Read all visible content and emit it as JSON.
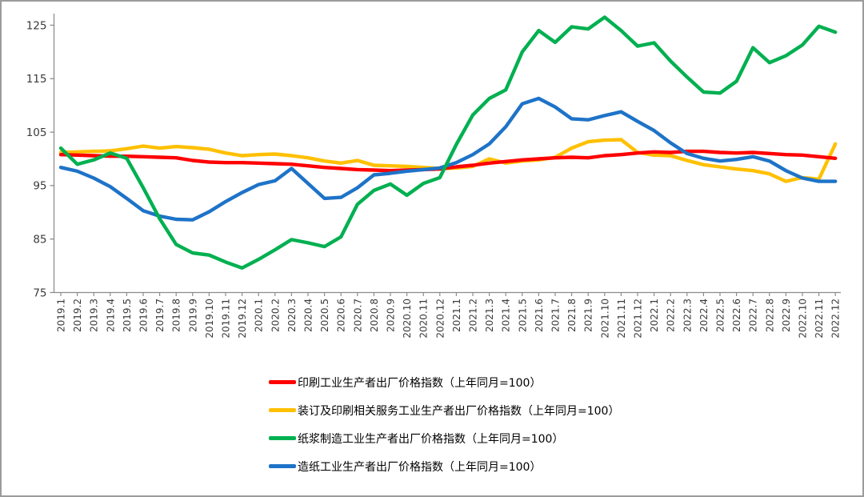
{
  "chart_data": {
    "type": "line",
    "title": "",
    "xlabel": "",
    "ylabel": "",
    "ylim": [
      75,
      125
    ],
    "y_ticks": [
      75,
      85,
      95,
      105,
      115,
      125
    ],
    "grid": false,
    "legend_position": "bottom-left",
    "style": {
      "axis_color": "#8c8c8c",
      "tick_text_color": "#3a3a3a"
    },
    "x_labels": [
      "2019.1",
      "2019.2",
      "2019.3",
      "2019.4",
      "2019.5",
      "2019.6",
      "2019.7",
      "2019.8",
      "2019.9",
      "2019.10",
      "2019.11",
      "2019.12",
      "2020.1",
      "2020.2",
      "2020.3",
      "2020.4",
      "2020.5",
      "2020.6",
      "2020.7",
      "2020.8",
      "2020.9",
      "2020.10",
      "2020.11",
      "2020.12",
      "2021.1",
      "2021.2",
      "2021.3",
      "2021.4",
      "2021.5",
      "2021.6",
      "2021.7",
      "2021.8",
      "2021.9",
      "2021.10",
      "2021.11",
      "2021.12",
      "2022.1",
      "2022.2",
      "2022.3",
      "2022.4",
      "2022.5",
      "2022.6",
      "2022.7",
      "2022.8",
      "2022.9",
      "2022.10",
      "2022.11",
      "2022.12"
    ],
    "series": [
      {
        "name": "printing-ppi",
        "label": "印刷工业生产者出厂价格指数（上年同月=100）",
        "color": "#FF0000",
        "values": [
          100.8,
          100.7,
          100.6,
          100.5,
          100.5,
          100.4,
          100.3,
          100.2,
          99.7,
          99.4,
          99.3,
          99.3,
          99.2,
          99.1,
          99.0,
          98.7,
          98.4,
          98.2,
          98.0,
          97.9,
          97.8,
          97.9,
          98.0,
          98.1,
          98.5,
          98.8,
          99.2,
          99.5,
          99.8,
          100.0,
          100.2,
          100.3,
          100.2,
          100.6,
          100.8,
          101.1,
          101.3,
          101.2,
          101.4,
          101.4,
          101.2,
          101.1,
          101.2,
          101.0,
          100.8,
          100.7,
          100.4,
          100.1
        ]
      },
      {
        "name": "binding-printing-services-ppi",
        "label": "装订及印刷相关服务工业生产者出厂价格指数（上年同月=100）",
        "color": "#FFC000",
        "values": [
          101.2,
          101.3,
          101.4,
          101.5,
          101.9,
          102.4,
          102.0,
          102.3,
          102.1,
          101.8,
          101.1,
          100.6,
          100.8,
          100.9,
          100.6,
          100.2,
          99.6,
          99.2,
          99.7,
          98.8,
          98.7,
          98.6,
          98.4,
          98.2,
          98.3,
          98.6,
          100.0,
          99.2,
          99.6,
          99.8,
          100.3,
          102.0,
          103.2,
          103.5,
          103.6,
          101.2,
          100.7,
          100.6,
          99.7,
          98.9,
          98.5,
          98.1,
          97.8,
          97.2,
          95.8,
          96.5,
          96.2,
          102.8
        ]
      },
      {
        "name": "pulp-manufacturing-ppi",
        "label": "纸浆制造工业生产者出厂价格指数（上年同月=100）",
        "color": "#00B050",
        "values": [
          102.0,
          99.0,
          99.8,
          101.1,
          100.1,
          94.6,
          88.8,
          84.0,
          82.4,
          82.0,
          80.7,
          79.6,
          81.2,
          83.0,
          84.9,
          84.3,
          83.6,
          85.4,
          91.5,
          94.1,
          95.3,
          93.2,
          95.4,
          96.5,
          102.7,
          108.2,
          111.3,
          112.9,
          120.0,
          124.0,
          121.8,
          124.7,
          124.3,
          126.5,
          124.0,
          121.1,
          121.7,
          118.3,
          115.3,
          112.5,
          112.3,
          114.5,
          120.8,
          118.0,
          119.3,
          121.3,
          124.8,
          123.7
        ]
      },
      {
        "name": "papermaking-ppi",
        "label": "造纸工业生产者出厂价格指数（上年同月=100）",
        "color": "#1E73C8",
        "values": [
          98.4,
          97.7,
          96.4,
          94.8,
          92.6,
          90.3,
          89.3,
          88.7,
          88.6,
          90.1,
          92.0,
          93.7,
          95.2,
          95.9,
          98.2,
          95.4,
          92.6,
          92.8,
          94.6,
          97.0,
          97.3,
          97.7,
          98.0,
          98.3,
          99.3,
          100.8,
          102.8,
          106.0,
          110.3,
          111.3,
          109.7,
          107.5,
          107.3,
          108.1,
          108.8,
          107.0,
          105.3,
          103.0,
          101.0,
          100.1,
          99.6,
          99.9,
          100.4,
          99.6,
          97.8,
          96.4,
          95.8,
          95.8
        ]
      }
    ]
  }
}
